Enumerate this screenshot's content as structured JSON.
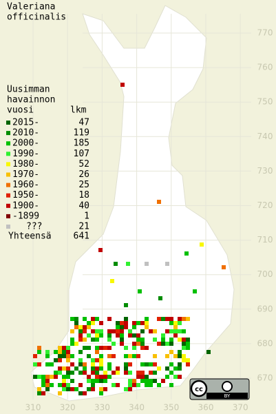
{
  "title": [
    "Valeriana",
    "officinalis"
  ],
  "legend": {
    "header": [
      "Uusimman",
      "havainnon",
      "vuosi"
    ],
    "count_header": "lkm",
    "rows": [
      {
        "label": "2015-",
        "count": 47,
        "color": "#006400"
      },
      {
        "label": "2010-",
        "count": 119,
        "color": "#008c00"
      },
      {
        "label": "2000-",
        "count": 185,
        "color": "#00c000"
      },
      {
        "label": "1990-",
        "count": 107,
        "color": "#30f030"
      },
      {
        "label": "1980-",
        "count": 52,
        "color": "#f8f800"
      },
      {
        "label": "1970-",
        "count": 26,
        "color": "#f8c000"
      },
      {
        "label": "1960-",
        "count": 25,
        "color": "#f07000"
      },
      {
        "label": "1950-",
        "count": 18,
        "color": "#e02000"
      },
      {
        "label": "1900-",
        "count": 40,
        "color": "#c00000"
      },
      {
        "label": "-1899",
        "count": 1,
        "color": "#800000"
      },
      {
        "label": "???",
        "count": 21,
        "color": "#c0c0c0"
      }
    ],
    "total_label": "Yhteensä",
    "total": 641
  },
  "grid": {
    "northing": [
      770,
      760,
      750,
      740,
      730,
      720,
      710,
      700,
      690,
      680,
      670
    ],
    "easting": [
      310,
      320,
      330,
      340,
      350,
      360,
      370
    ]
  },
  "license": {
    "icon": "cc",
    "label": "BY"
  }
}
